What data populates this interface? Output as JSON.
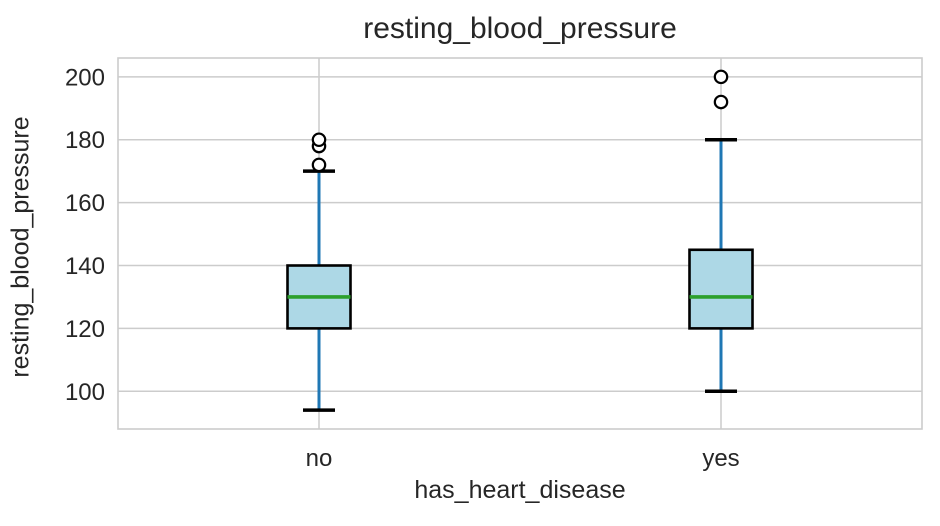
{
  "page": {
    "background": "#ffffff"
  },
  "chart_data": {
    "type": "box",
    "title": "resting_blood_pressure",
    "xlabel": "has_heart_disease",
    "ylabel": "resting_blood_pressure",
    "categories": [
      "no",
      "yes"
    ],
    "series": [
      {
        "category": "no",
        "whisker_low": 94,
        "q1": 120,
        "median": 130,
        "q3": 140,
        "whisker_high": 170,
        "outliers": [
          172,
          178,
          180
        ]
      },
      {
        "category": "yes",
        "whisker_low": 100,
        "q1": 120,
        "median": 130,
        "q3": 145,
        "whisker_high": 180,
        "outliers": [
          192,
          200
        ]
      }
    ],
    "yticks": [
      100,
      120,
      140,
      160,
      180,
      200
    ],
    "ylim": [
      88,
      206
    ],
    "grid": true,
    "legend_position": "none",
    "colors": {
      "box_fill": "#add8e6",
      "box_edge": "#000000",
      "median": "#2ca02c",
      "whisker": "#1f77b4",
      "cap": "#000000",
      "outlier_edge": "#000000",
      "outlier_fill": "#ffffff",
      "grid": "#cccccc",
      "axes_edge": "#cccccc",
      "text": "#262626",
      "background": "#ffffff"
    }
  }
}
